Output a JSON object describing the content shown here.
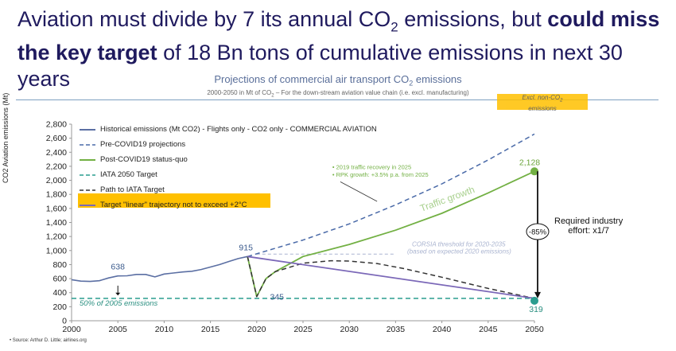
{
  "headline": {
    "part1": "Aviation must divide by 7 its annual CO",
    "sub": "2",
    "part2": " emissions, but ",
    "bold1": "could miss",
    "bold2": "the key target",
    "part3": " of 18 Bn tons of cumulative emissions in next 30 years"
  },
  "subtitle": {
    "main": "Projections of commercial air transport CO",
    "sub": "2",
    "tail": " emissions",
    "line2a": "2000-2050 in Mt of CO",
    "line2sub": "2",
    "line2b": " – For the down-stream aviation value chain (i.e. excl. manufacturing)"
  },
  "excl_box": {
    "line1": "Excl. non-CO",
    "sub": "2",
    "line2": "emissions"
  },
  "legend": {
    "historical": "Historical emissions (Mt CO2) - Flights only - CO2 only - COMMERCIAL AVIATION",
    "pre_covid": "Pre-COVID19 projections",
    "post_covid": "Post-COVID19 status-quo",
    "iata_target": "IATA 2050 Target",
    "path_iata": "Path to IATA Target",
    "linear": "Target \"linear\" trajectory not to exceed +2°C"
  },
  "annotations": {
    "traffic_note1": "• 2019 traffic recovery in 2025",
    "traffic_note2": "• RPK growth: +3.5% p.a. from 2025",
    "traffic_growth": "Traffic growth",
    "corsia1": "CORSIA threshold for 2020-2035",
    "corsia2": "(based on expected 2020 emissions)",
    "fifty_pct": "50% of 2005 emissions",
    "reduction": "-85%",
    "effort1": "Required industry",
    "effort2": "effort:  x1/7",
    "label_638": "638",
    "label_915": "915",
    "label_345": "345",
    "label_2128": "2,128",
    "label_319": "319"
  },
  "source": "Source: Arthur D. Little; airlines.org",
  "colors": {
    "historical": "#5b6fa3",
    "pre_covid": "#4a6aa8",
    "post_covid": "#72b043",
    "iata": "#2a9d8f",
    "path_iata": "#333333",
    "linear": "#7b68b8",
    "highlight": "#ffc000"
  },
  "chart_data": {
    "type": "line",
    "title": "Projections of commercial air transport CO2 emissions",
    "xlabel": "",
    "ylabel": "CO2 Aviation emissions (Mt)",
    "xlim": [
      2000,
      2050
    ],
    "ylim": [
      0,
      2800
    ],
    "xticks": [
      2000,
      2005,
      2010,
      2015,
      2020,
      2025,
      2030,
      2035,
      2040,
      2045,
      2050
    ],
    "yticks": [
      0,
      200,
      400,
      600,
      800,
      1000,
      1200,
      1400,
      1600,
      1800,
      2000,
      2200,
      2400,
      2600,
      2800
    ],
    "series": [
      {
        "name": "Historical emissions (Mt CO2) - Flights only - CO2 only - COMMERCIAL AVIATION",
        "style": "solid",
        "x": [
          2000,
          2001,
          2002,
          2003,
          2004,
          2005,
          2006,
          2007,
          2008,
          2009,
          2010,
          2011,
          2012,
          2013,
          2014,
          2015,
          2016,
          2017,
          2018,
          2019
        ],
        "y": [
          585,
          565,
          560,
          570,
          610,
          638,
          640,
          660,
          660,
          625,
          665,
          680,
          695,
          705,
          730,
          765,
          800,
          845,
          885,
          915
        ]
      },
      {
        "name": "Pre-COVID19 projections",
        "style": "dashed",
        "x": [
          2019,
          2025,
          2030,
          2035,
          2040,
          2045,
          2050
        ],
        "y": [
          915,
          1150,
          1380,
          1650,
          1950,
          2290,
          2660
        ]
      },
      {
        "name": "Post-COVID19 status-quo",
        "style": "solid",
        "x": [
          2019,
          2020,
          2021,
          2022,
          2025,
          2030,
          2035,
          2040,
          2045,
          2050
        ],
        "y": [
          915,
          345,
          600,
          700,
          915,
          1087,
          1290,
          1530,
          1820,
          2128
        ]
      },
      {
        "name": "IATA 2050 Target",
        "style": "dashed",
        "x": [
          2000,
          2050
        ],
        "y": [
          319,
          319
        ]
      },
      {
        "name": "Path to IATA Target",
        "style": "dashed",
        "x": [
          2019,
          2020,
          2021,
          2022,
          2025,
          2028,
          2030,
          2033,
          2036,
          2040,
          2045,
          2050
        ],
        "y": [
          915,
          345,
          600,
          700,
          820,
          855,
          850,
          815,
          740,
          620,
          460,
          319
        ]
      },
      {
        "name": "Target \"linear\" trajectory not to exceed +2°C",
        "style": "solid",
        "x": [
          2019,
          2050
        ],
        "y": [
          915,
          319
        ]
      }
    ],
    "reference_lines": [
      {
        "label": "CORSIA threshold for 2020-2035",
        "y": 950,
        "x": [
          2020,
          2035
        ],
        "style": "dashed"
      }
    ]
  }
}
